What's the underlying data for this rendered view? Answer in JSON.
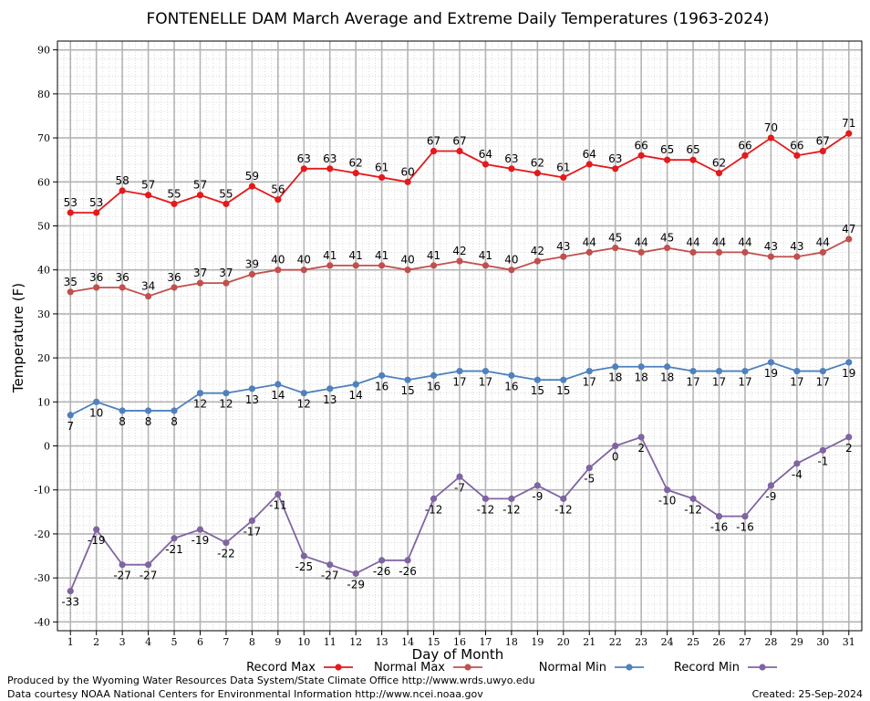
{
  "chart_data": {
    "type": "line",
    "title": "FONTENELLE DAM March Average and Extreme Daily Temperatures (1963-2024)",
    "xlabel": "Day of Month",
    "ylabel": "Temperature (F)",
    "x": [
      1,
      2,
      3,
      4,
      5,
      6,
      7,
      8,
      9,
      10,
      11,
      12,
      13,
      14,
      15,
      16,
      17,
      18,
      19,
      20,
      21,
      22,
      23,
      24,
      25,
      26,
      27,
      28,
      29,
      30,
      31
    ],
    "xlim": [
      1,
      31
    ],
    "ylim": [
      -40,
      90
    ],
    "yticks": [
      -40,
      -30,
      -20,
      -10,
      0,
      10,
      20,
      30,
      40,
      50,
      60,
      70,
      80,
      90
    ],
    "grid": true,
    "legend_position": "bottom",
    "series": [
      {
        "name": "Record Max",
        "color": "#e31a1c",
        "label_position": "above",
        "values": [
          53,
          53,
          58,
          57,
          55,
          57,
          55,
          59,
          56,
          63,
          63,
          62,
          61,
          60,
          67,
          67,
          64,
          63,
          62,
          61,
          64,
          63,
          66,
          65,
          65,
          62,
          66,
          70,
          66,
          67,
          71
        ]
      },
      {
        "name": "Normal Max",
        "color": "#c0504d",
        "label_position": "above",
        "values": [
          35,
          36,
          36,
          34,
          36,
          37,
          37,
          39,
          40,
          40,
          41,
          41,
          41,
          40,
          41,
          42,
          41,
          40,
          42,
          43,
          44,
          45,
          44,
          45,
          44,
          44,
          44,
          43,
          43,
          44,
          47
        ]
      },
      {
        "name": "Normal Min",
        "color": "#4f81bd",
        "label_position": "below",
        "values": [
          7,
          10,
          8,
          8,
          8,
          12,
          12,
          13,
          14,
          12,
          13,
          14,
          16,
          15,
          16,
          17,
          17,
          16,
          15,
          15,
          17,
          18,
          18,
          18,
          17,
          17,
          17,
          19,
          17,
          17,
          19
        ]
      },
      {
        "name": "Record Min",
        "color": "#8064a2",
        "label_position": "below",
        "values": [
          -33,
          -19,
          -27,
          -27,
          -21,
          -19,
          -22,
          -17,
          -11,
          -25,
          -27,
          -29,
          -26,
          -26,
          -12,
          -7,
          -12,
          -12,
          -9,
          -12,
          -5,
          0,
          2,
          -10,
          -12,
          -16,
          -16,
          -9,
          -4,
          -1,
          2
        ]
      }
    ]
  },
  "footer": {
    "produced_by": "Produced by the Wyoming Water Resources Data System/State Climate Office http://www.wrds.uwyo.edu",
    "courtesy": "Data courtesy NOAA National Centers for Environmental Information http://www.ncei.noaa.gov",
    "created": "Created:  25-Sep-2024"
  }
}
